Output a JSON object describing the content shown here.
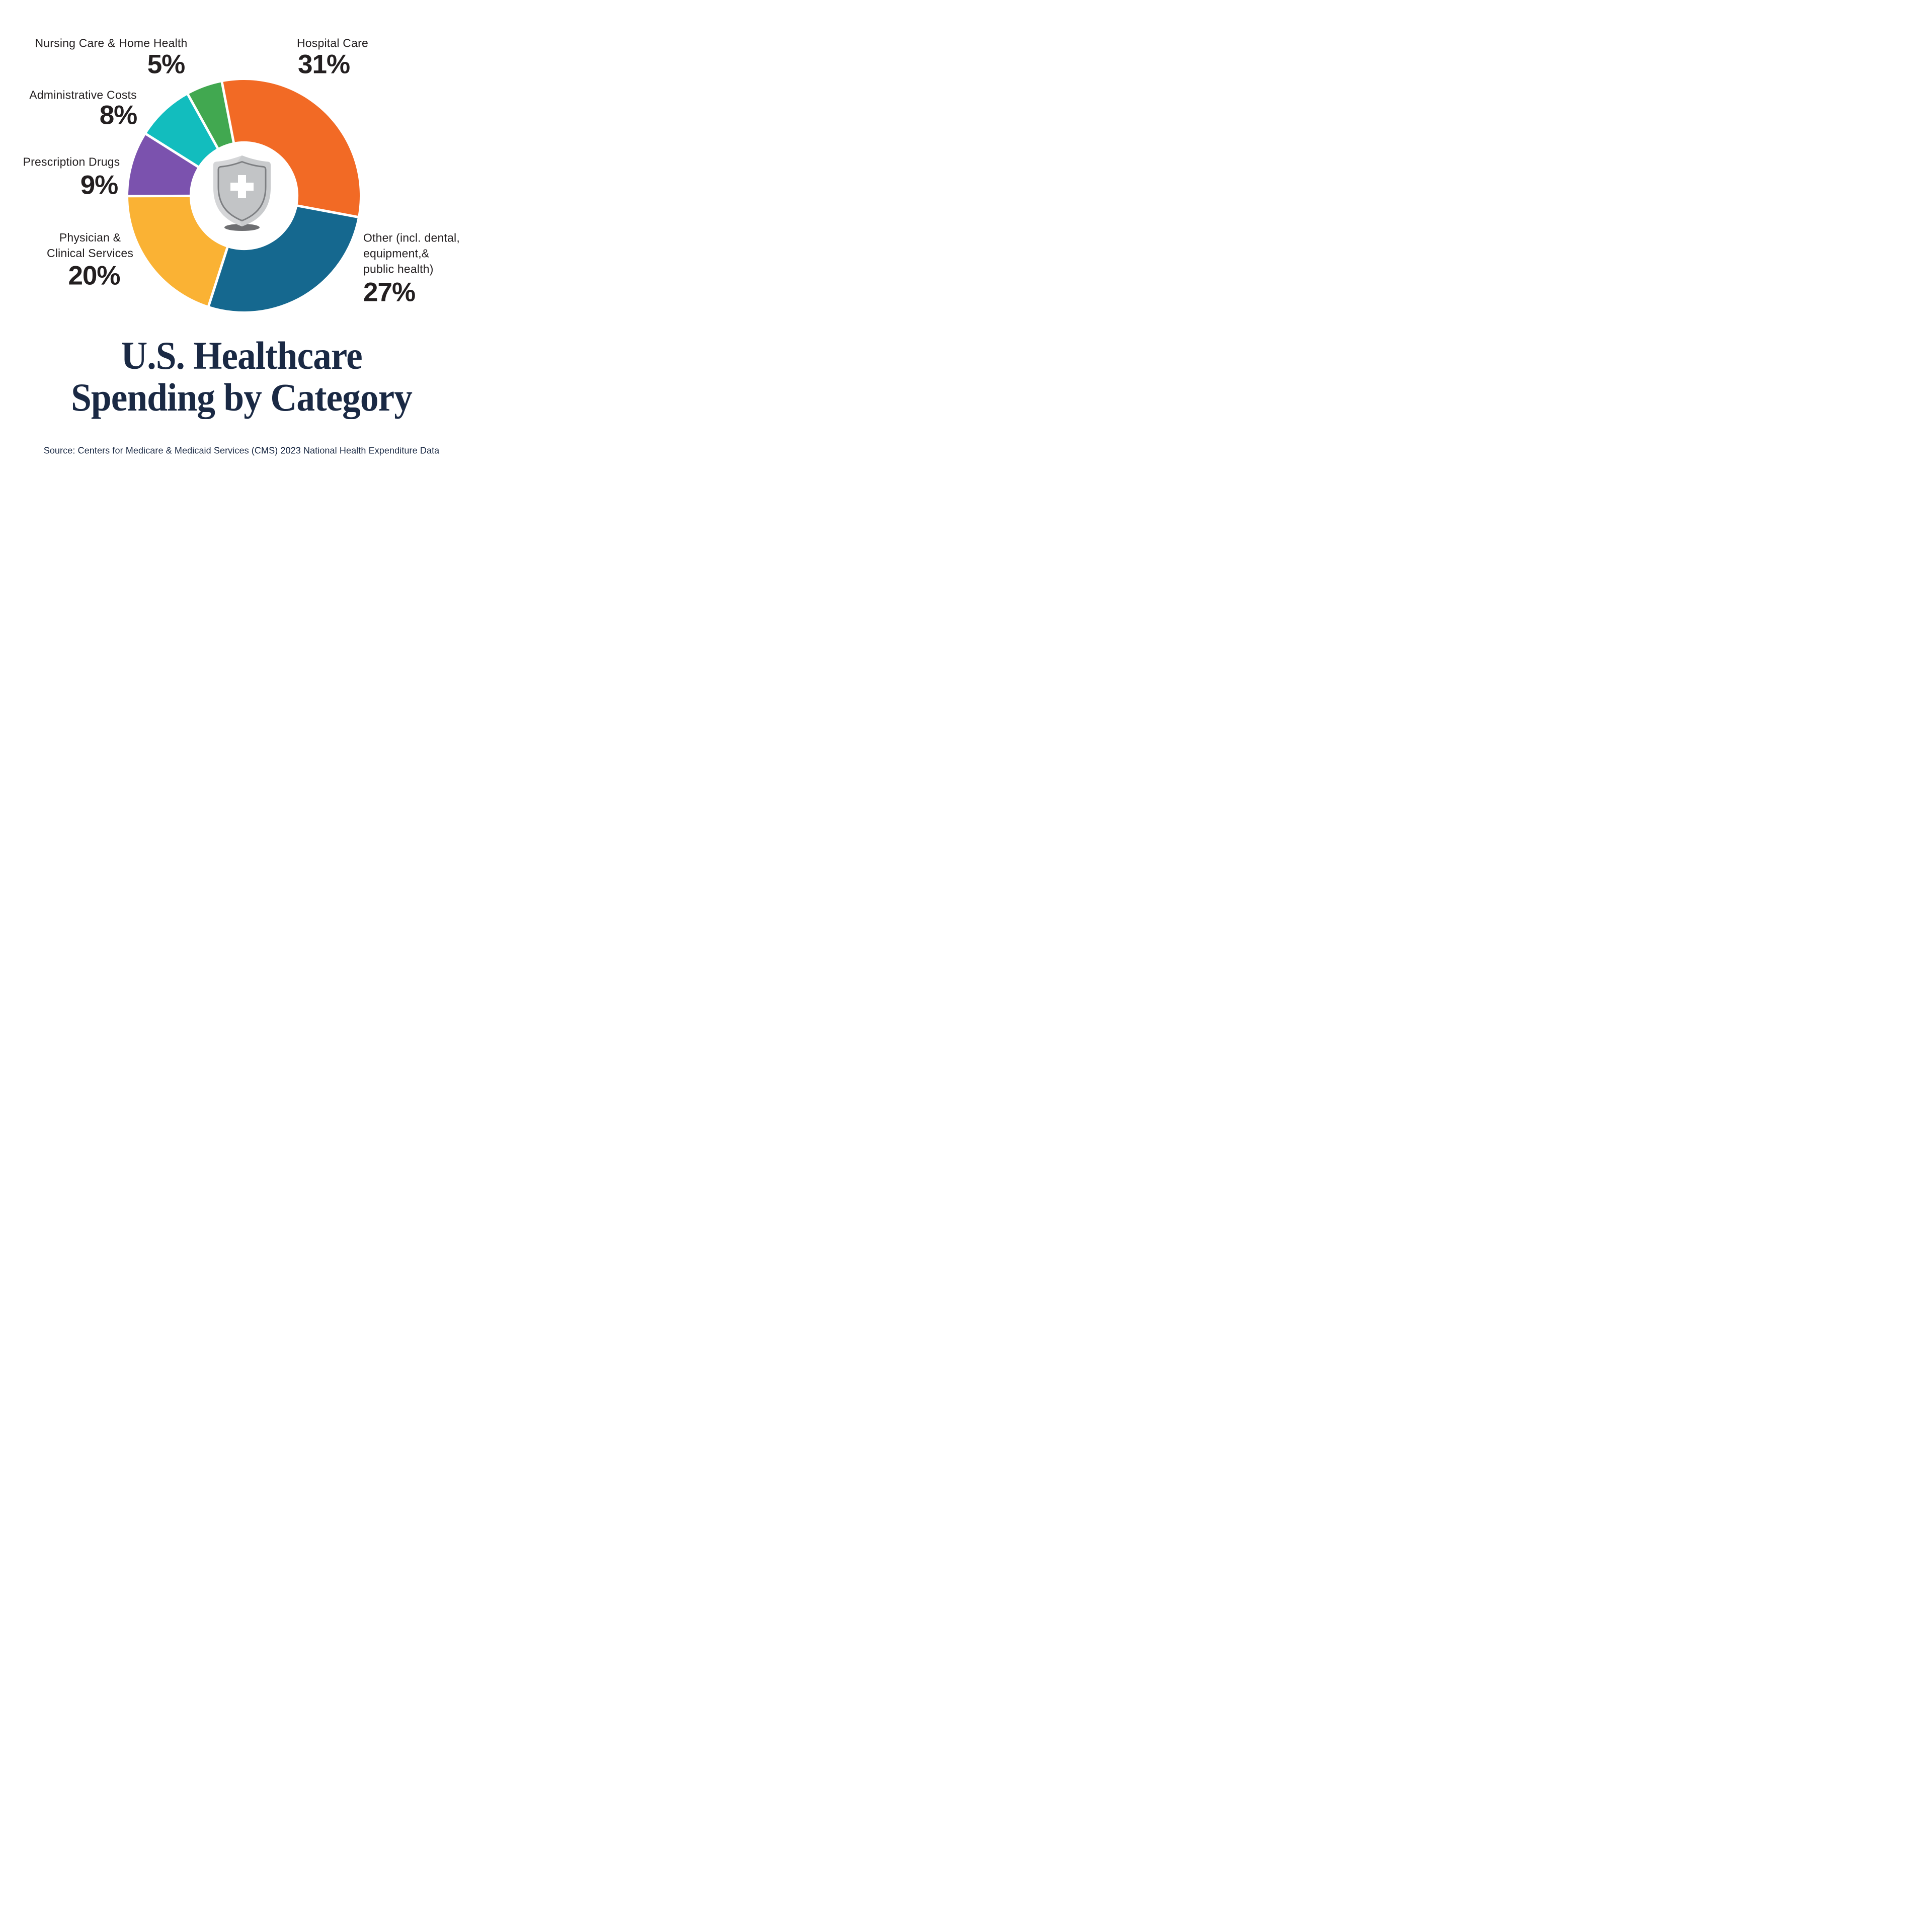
{
  "chart_data": {
    "type": "pie",
    "variant": "donut",
    "title": "U.S. Healthcare Spending by Category",
    "source": "Source: Centers for Medicare & Medicaid Services (CMS) 2023 National Health Expenditure Data",
    "unit": "percent",
    "start_angle_deg": -11,
    "clockwise": true,
    "donut_hole_ratio": 0.47,
    "gap_color": "#FFFFFF",
    "center_icon": "medical-shield",
    "legend_position": "callout-labels-around-chart",
    "segments": [
      {
        "label": "Hospital Care",
        "value": 31,
        "color": "#F26A25"
      },
      {
        "label": "Other (incl. dental, equipment,& public health)",
        "value": 27,
        "color": "#15688F"
      },
      {
        "label": "Physician & Clinical Services",
        "value": 20,
        "color": "#FAB234"
      },
      {
        "label": "Prescription Drugs",
        "value": 9,
        "color": "#7B52AE"
      },
      {
        "label": "Administrative Costs",
        "value": 8,
        "color": "#12BDBE"
      },
      {
        "label": "Nursing Care & Home Health",
        "value": 5,
        "color": "#41A850"
      }
    ]
  },
  "callouts": {
    "nursing": {
      "label": "Nursing Care & Home Health",
      "pct": "5%"
    },
    "hospital": {
      "label": "Hospital Care",
      "pct": "31%"
    },
    "admin": {
      "label": "Administrative Costs",
      "pct": "8%"
    },
    "prescription": {
      "label": "Prescription Drugs",
      "pct": "9%"
    },
    "physician": {
      "label": "Physician &\nClinical Services",
      "pct": "20%"
    },
    "other": {
      "label": "Other (incl. dental,\nequipment,&\npublic health)",
      "pct": "27%"
    }
  },
  "display_title": "U.S. Healthcare\nSpending by Category",
  "source_text": "Source: Centers for Medicare & Medicaid Services (CMS) 2023 National Health Expenditure Data",
  "colors": {
    "title_text": "#1A2944",
    "label_text": "#231F20",
    "source_text": "#1A2944",
    "background": "#FFFFFF",
    "shield_body": "#C9CBCD",
    "shield_inner": "#C2C4C6",
    "shield_outline": "#7D7F82",
    "shield_shadow": "#6D6E71",
    "cross": "#FFFFFF"
  }
}
